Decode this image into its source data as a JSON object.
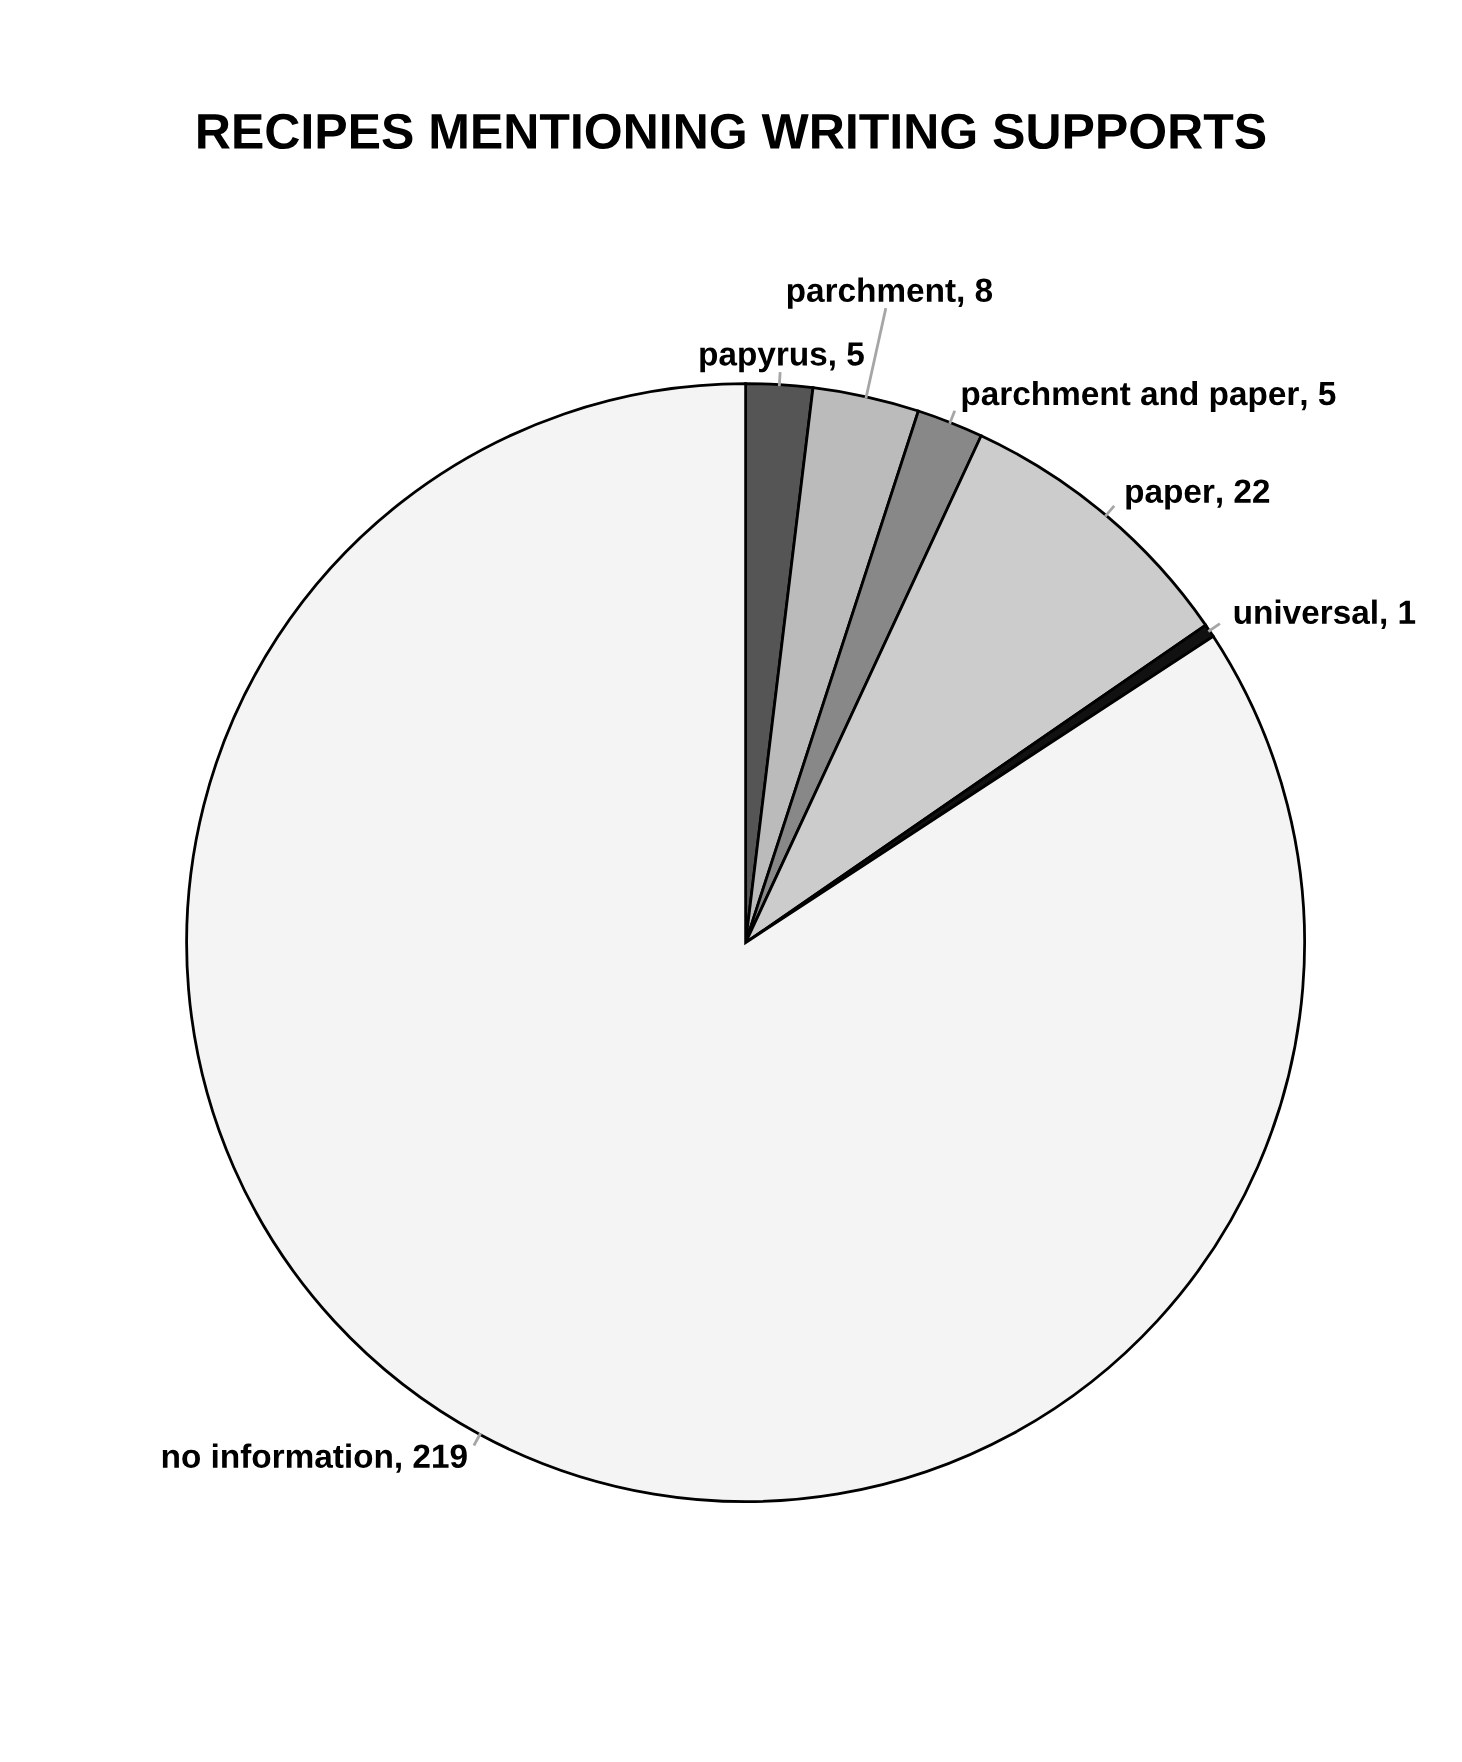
{
  "chart_data": {
    "type": "pie",
    "title": "RECIPES MENTIONING WRITING SUPPORTS",
    "categories": [
      "papyrus",
      "parchment",
      "parchment and paper",
      "paper",
      "universal",
      "no information"
    ],
    "values": [
      5,
      8,
      5,
      22,
      1,
      219
    ],
    "colors": [
      "#555555",
      "#bbbbbb",
      "#888888",
      "#cccccc",
      "#111111",
      "#f4f4f4"
    ],
    "value_labels": [
      ", 5",
      ", 8",
      ", 5",
      ", 22",
      ", 1",
      ", 219"
    ],
    "legend": false
  }
}
